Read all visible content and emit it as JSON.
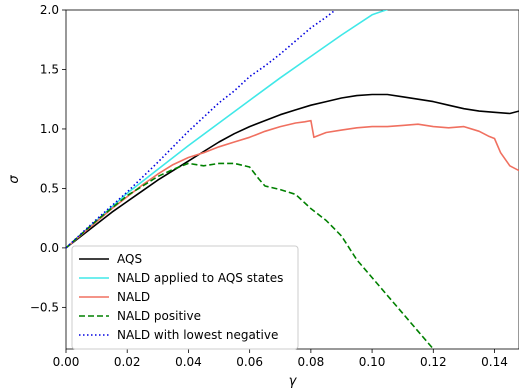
{
  "chart_data": {
    "type": "line",
    "title": "",
    "xlabel": "γ",
    "ylabel": "σ",
    "xlim": [
      0.0,
      0.148
    ],
    "ylim": [
      -0.85,
      2.0
    ],
    "xticks": [
      0.0,
      0.02,
      0.04,
      0.06,
      0.08,
      0.1,
      0.12,
      0.14
    ],
    "xtick_labels": [
      "0.00",
      "0.02",
      "0.04",
      "0.06",
      "0.08",
      "0.10",
      "0.12",
      "0.14"
    ],
    "yticks": [
      -0.5,
      0.0,
      0.5,
      1.0,
      1.5,
      2.0
    ],
    "ytick_labels": [
      "−0.5",
      "0.0",
      "0.5",
      "1.0",
      "1.5",
      "2.0"
    ],
    "grid": false,
    "legend_position": "bottom-left",
    "series": [
      {
        "name": "AQS",
        "color": "#000000",
        "style": "solid",
        "x": [
          0.0,
          0.005,
          0.01,
          0.015,
          0.02,
          0.025,
          0.03,
          0.035,
          0.04,
          0.045,
          0.05,
          0.055,
          0.06,
          0.065,
          0.07,
          0.075,
          0.08,
          0.085,
          0.09,
          0.095,
          0.1,
          0.105,
          0.11,
          0.115,
          0.12,
          0.125,
          0.13,
          0.135,
          0.14,
          0.145,
          0.148
        ],
        "y": [
          0.0,
          0.1,
          0.2,
          0.3,
          0.39,
          0.48,
          0.57,
          0.65,
          0.73,
          0.81,
          0.89,
          0.96,
          1.02,
          1.07,
          1.12,
          1.16,
          1.2,
          1.23,
          1.26,
          1.28,
          1.29,
          1.29,
          1.27,
          1.25,
          1.23,
          1.2,
          1.17,
          1.15,
          1.14,
          1.13,
          1.15
        ]
      },
      {
        "name": "NALD applied to AQS states",
        "color": "#40e8e8",
        "style": "solid",
        "x": [
          0.0,
          0.01,
          0.02,
          0.03,
          0.04,
          0.05,
          0.06,
          0.07,
          0.08,
          0.09,
          0.1,
          0.11
        ],
        "y": [
          0.0,
          0.23,
          0.46,
          0.66,
          0.86,
          1.05,
          1.24,
          1.43,
          1.61,
          1.79,
          1.96,
          2.05
        ]
      },
      {
        "name": "NALD",
        "color": "#f07060",
        "style": "solid",
        "x": [
          0.0,
          0.005,
          0.01,
          0.015,
          0.02,
          0.025,
          0.03,
          0.035,
          0.04,
          0.045,
          0.05,
          0.055,
          0.06,
          0.065,
          0.07,
          0.075,
          0.078,
          0.08,
          0.081,
          0.085,
          0.09,
          0.095,
          0.1,
          0.105,
          0.11,
          0.115,
          0.12,
          0.125,
          0.13,
          0.135,
          0.138,
          0.14,
          0.142,
          0.145,
          0.148
        ],
        "y": [
          0.0,
          0.11,
          0.22,
          0.33,
          0.43,
          0.53,
          0.62,
          0.7,
          0.76,
          0.8,
          0.85,
          0.89,
          0.93,
          0.98,
          1.02,
          1.05,
          1.06,
          1.07,
          0.93,
          0.97,
          0.99,
          1.01,
          1.02,
          1.02,
          1.03,
          1.04,
          1.02,
          1.01,
          1.02,
          0.98,
          0.94,
          0.92,
          0.8,
          0.69,
          0.65
        ]
      },
      {
        "name": "NALD positive",
        "color": "#008000",
        "style": "dashed",
        "x": [
          0.0,
          0.01,
          0.02,
          0.03,
          0.035,
          0.04,
          0.045,
          0.05,
          0.055,
          0.06,
          0.063,
          0.065,
          0.07,
          0.075,
          0.08,
          0.085,
          0.09,
          0.095,
          0.1,
          0.105,
          0.11,
          0.115,
          0.12
        ],
        "y": [
          0.0,
          0.23,
          0.44,
          0.6,
          0.66,
          0.71,
          0.69,
          0.71,
          0.71,
          0.68,
          0.58,
          0.52,
          0.49,
          0.45,
          0.33,
          0.23,
          0.1,
          -0.1,
          -0.25,
          -0.4,
          -0.55,
          -0.7,
          -0.85
        ]
      },
      {
        "name": "NALD with lowest negative",
        "color": "#0000e0",
        "style": "dotted",
        "x": [
          0.0,
          0.01,
          0.02,
          0.03,
          0.04,
          0.045,
          0.05,
          0.055,
          0.06,
          0.065,
          0.07,
          0.075,
          0.08,
          0.085,
          0.088
        ],
        "y": [
          0.0,
          0.24,
          0.47,
          0.72,
          0.98,
          1.1,
          1.22,
          1.32,
          1.44,
          1.53,
          1.63,
          1.74,
          1.85,
          1.94,
          2.0
        ]
      }
    ]
  }
}
